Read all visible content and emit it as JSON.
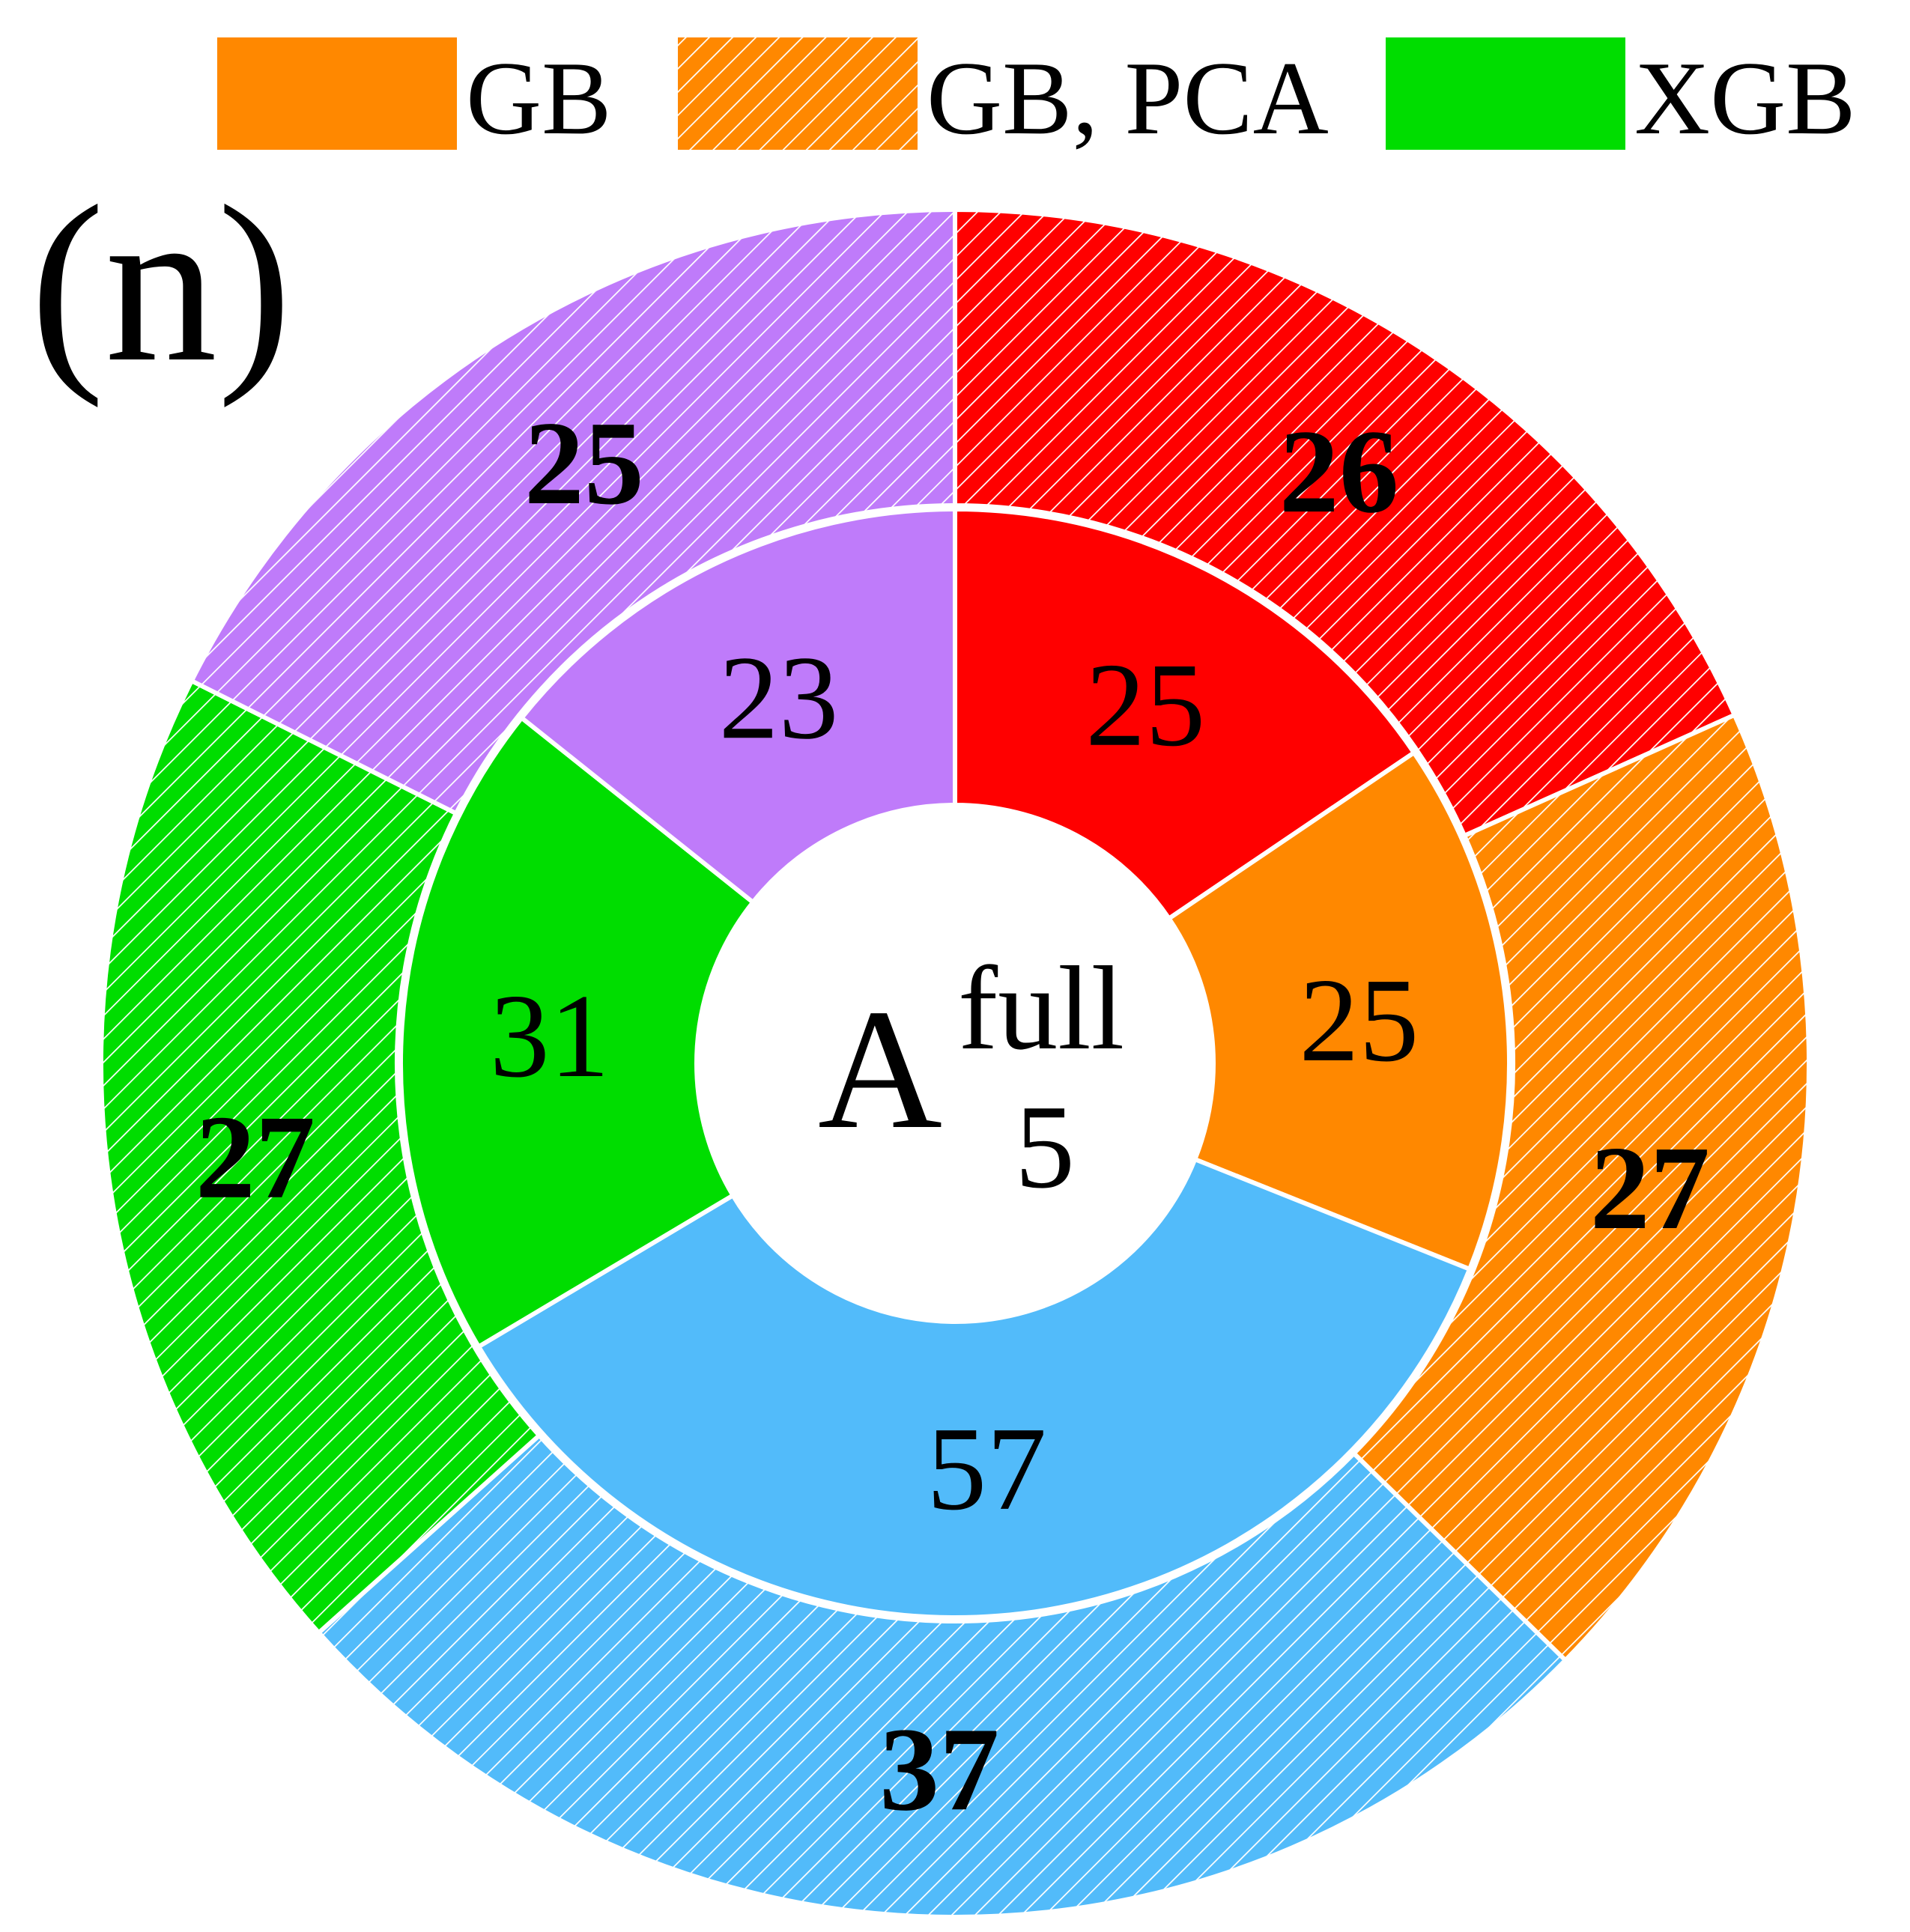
{
  "panel_label": "(n)",
  "center_label": {
    "main": "A",
    "superscript": "full",
    "subscript": "5"
  },
  "legend": [
    {
      "label": "GB",
      "color": "#FF8800",
      "hatched": false
    },
    {
      "label": "GB, PCA",
      "color": "#FF8800",
      "hatched": true
    },
    {
      "label": "XGB",
      "color": "#00DD00",
      "hatched": false
    }
  ],
  "chart_data": [
    {
      "type": "pie",
      "ring": "inner",
      "hatched": false,
      "label_style": "normal",
      "values": [
        25,
        25,
        57,
        31,
        23
      ],
      "colors": [
        "#FF0000",
        "#FF8800",
        "#52BBFA",
        "#00DD00",
        "#BF7BFA"
      ]
    },
    {
      "type": "pie",
      "ring": "outer",
      "hatched": true,
      "label_style": "bold",
      "values": [
        26,
        27,
        37,
        27,
        25
      ],
      "colors": [
        "#FF0000",
        "#FF8800",
        "#52BBFA",
        "#00DD00",
        "#BF7BFA"
      ]
    }
  ]
}
